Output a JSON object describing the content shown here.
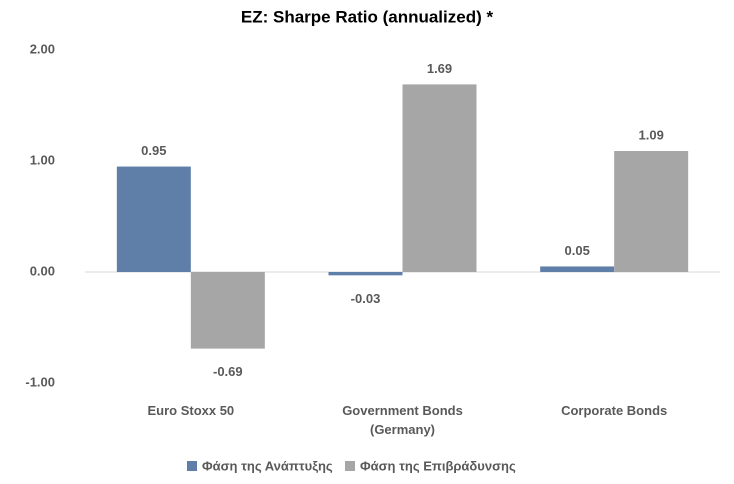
{
  "chart_data": {
    "type": "bar",
    "title": "EZ: Sharpe Ratio (annualized) *",
    "categories": [
      "Euro Stoxx 50",
      "Government Bonds (Germany)",
      "Corporate Bonds"
    ],
    "series": [
      {
        "name": "Φάση της Ανάπτυξης",
        "color": "#5f7fa8",
        "values": [
          0.95,
          -0.03,
          0.05
        ]
      },
      {
        "name": "Φάση της Επιβράδυνσης",
        "color": "#a6a6a6",
        "values": [
          -0.69,
          1.69,
          1.09
        ]
      }
    ],
    "ylim": [
      -1,
      2
    ],
    "yticks": [
      {
        "value": -1,
        "label": "-1.00"
      },
      {
        "value": 0,
        "label": "0.00"
      },
      {
        "value": 1,
        "label": "1.00"
      },
      {
        "value": 2,
        "label": "2.00"
      }
    ],
    "grid": false,
    "legend": "bottom"
  }
}
